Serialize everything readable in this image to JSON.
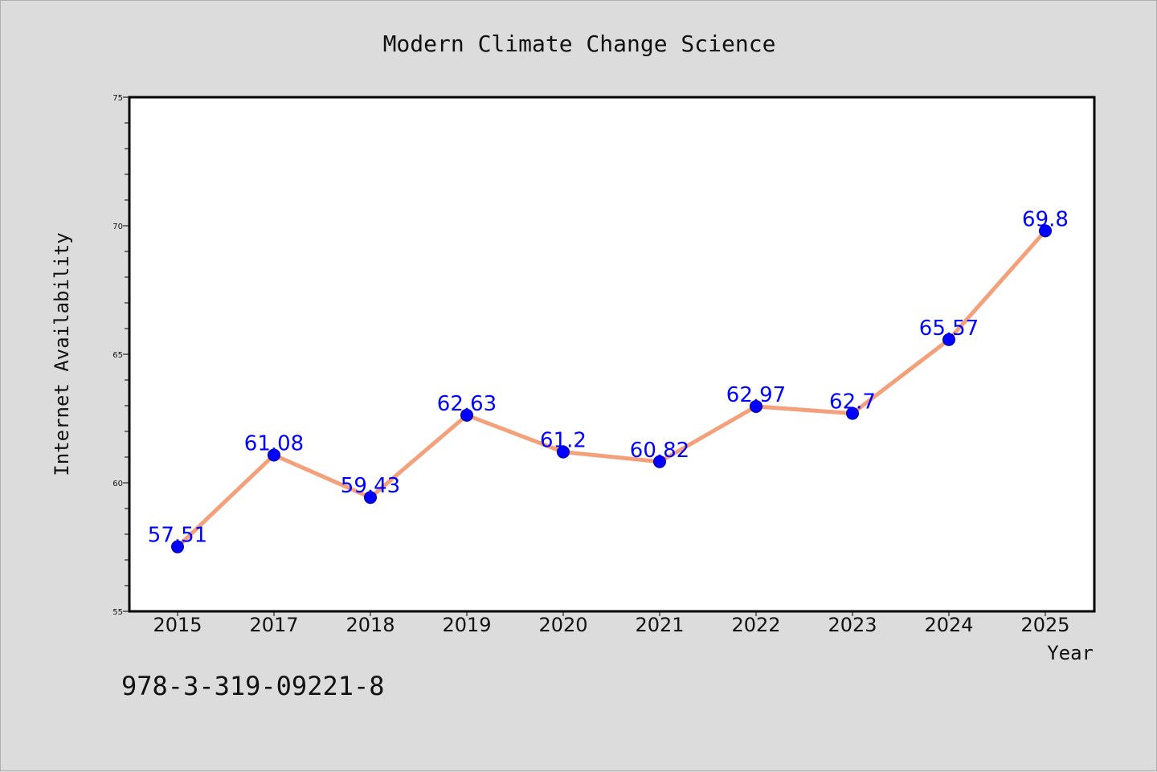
{
  "chart_data": {
    "type": "line",
    "title": "Modern Climate Change Science",
    "xlabel": "Year",
    "ylabel": "Internet Availability",
    "categories": [
      "2015",
      "2017",
      "2018",
      "2019",
      "2020",
      "2021",
      "2022",
      "2023",
      "2024",
      "2025"
    ],
    "series": [
      {
        "values": [
          57.51,
          61.08,
          59.43,
          62.63,
          61.2,
          60.82,
          62.97,
          62.7,
          65.57,
          69.8
        ],
        "data_labels": [
          "57.51",
          "61.08",
          "59.43",
          "62.63",
          "61.2",
          "60.82",
          "62.97",
          "62.7",
          "65.57",
          "69.8"
        ],
        "line_color": "#f4a07a",
        "marker_color": "#0000ff"
      }
    ],
    "ylim": [
      55,
      75
    ],
    "yticks": [
      "55",
      "60",
      "65",
      "70",
      "75"
    ],
    "grid": false,
    "legend": "none"
  },
  "footer": {
    "isbn": "978-3-319-09221-8"
  },
  "colors": {
    "background": "#dcdcdc",
    "plot_background": "#ffffff",
    "label_color": "#0000ff"
  }
}
